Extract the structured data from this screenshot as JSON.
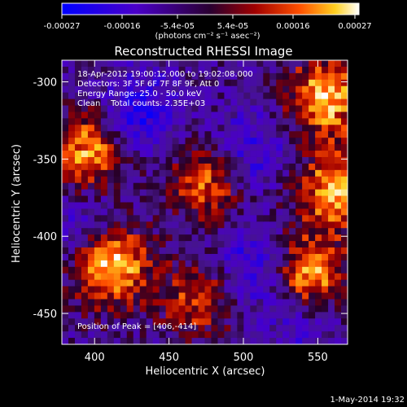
{
  "colorbar": {
    "ticks": [
      "-0.00027",
      "-0.00016",
      "-5.4e-05",
      "5.4e-05",
      "0.00016",
      "0.00027"
    ],
    "unit_label": "(photons cm⁻² s⁻¹ asec⁻²)"
  },
  "title": "Reconstructed RHESSI Image",
  "annotations": {
    "time_range": "18-Apr-2012 19:00:12.000 to 19:02:08.000",
    "detectors": "Detectors: 3F 5F 6F 7F 8F 9F, Att 0",
    "energy": "Energy Range: 25.0 - 50.0 keV",
    "clean": "Clean    Total counts: 2.35E+03",
    "peak": "Position of Peak = [406,-414]"
  },
  "footer": {
    "timestamp": "1-May-2014 19:32"
  },
  "chart_data": {
    "type": "heatmap",
    "title": "Reconstructed RHESSI Image",
    "xlabel": "Heliocentric X (arcsec)",
    "ylabel": "Heliocentric Y (arcsec)",
    "xlim": [
      378,
      570
    ],
    "ylim": [
      -470,
      -286
    ],
    "x_ticks": [
      400,
      450,
      500,
      550
    ],
    "y_ticks": [
      -300,
      -350,
      -400,
      -450
    ],
    "colorbar_range": [
      -0.00027,
      0.00027
    ],
    "colormap": "blue-purple-red-yellow-white",
    "peak": [
      406,
      -414
    ],
    "hot_regions": [
      {
        "label": "lower-left bright blob",
        "x": 410,
        "y": -418,
        "intensity": 1.0
      },
      {
        "label": "left-middle",
        "x": 395,
        "y": -345,
        "intensity": 0.75
      },
      {
        "label": "upper-right",
        "x": 555,
        "y": -310,
        "intensity": 0.85
      },
      {
        "label": "right-middle",
        "x": 560,
        "y": -370,
        "intensity": 0.75
      },
      {
        "label": "lower-right",
        "x": 545,
        "y": -425,
        "intensity": 0.8
      },
      {
        "label": "center",
        "x": 475,
        "y": -365,
        "intensity": 0.6
      },
      {
        "label": "bottom-center",
        "x": 470,
        "y": -440,
        "intensity": 0.55
      }
    ],
    "cold_regions": [
      {
        "x": 430,
        "y": -320,
        "intensity": -0.5
      },
      {
        "x": 505,
        "y": -345,
        "intensity": -0.4
      },
      {
        "x": 505,
        "y": -420,
        "intensity": -0.45
      },
      {
        "x": 395,
        "y": -395,
        "intensity": -0.35
      },
      {
        "x": 540,
        "y": -455,
        "intensity": -0.3
      }
    ]
  }
}
